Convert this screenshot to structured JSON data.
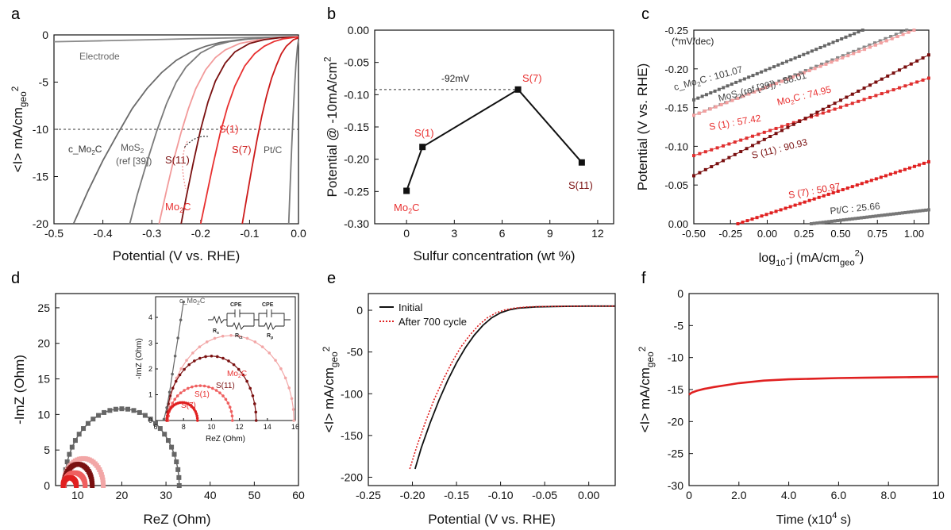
{
  "chart_data": [
    {
      "panel": "a",
      "type": "line",
      "xlabel": "Potential  (V vs. RHE)",
      "ylabel": "<I> mA/cm",
      "ylabel_sub": "geo",
      "ylabel_sup": "2",
      "xlim": [
        -0.5,
        0.0
      ],
      "ylim": [
        -20,
        0
      ],
      "xticks": [
        "-0.5",
        "-0.4",
        "-0.3",
        "-0.2",
        "-0.1",
        "0.0"
      ],
      "yticks": [
        "0",
        "-5",
        "-10",
        "-15",
        "-20"
      ],
      "series": [
        {
          "name": "Electrode",
          "color": "#8a8a8a",
          "x": [
            -0.5,
            -0.4,
            -0.3,
            -0.2,
            -0.1,
            -0.03,
            0.0
          ],
          "y": [
            -0.72,
            -0.62,
            -0.5,
            -0.38,
            -0.28,
            -0.22,
            -0.2
          ]
        },
        {
          "name": "c_Mo2C",
          "color": "#6a6a6a",
          "x": [
            -0.46,
            -0.43,
            -0.4,
            -0.37,
            -0.34,
            -0.31,
            -0.28,
            -0.25,
            -0.22,
            -0.19,
            -0.16,
            -0.12,
            -0.08,
            -0.04,
            0.0
          ],
          "y": [
            -20,
            -16.5,
            -13.3,
            -10.5,
            -7.8,
            -5.7,
            -4.0,
            -2.7,
            -1.8,
            -1.2,
            -0.8,
            -0.5,
            -0.35,
            -0.25,
            -0.2
          ]
        },
        {
          "name": "MoS2 (ref [39])",
          "color": "#7a7a7a",
          "x": [
            -0.345,
            -0.33,
            -0.31,
            -0.29,
            -0.27,
            -0.25,
            -0.23,
            -0.2,
            -0.17,
            -0.14,
            -0.1,
            -0.05,
            0.0
          ],
          "y": [
            -20,
            -17.0,
            -13.5,
            -10.2,
            -7.3,
            -5.0,
            -3.4,
            -1.9,
            -1.1,
            -0.7,
            -0.4,
            -0.25,
            -0.2
          ]
        },
        {
          "name": "Mo2C",
          "color": "#f29a9a",
          "x": [
            -0.285,
            -0.27,
            -0.255,
            -0.24,
            -0.225,
            -0.21,
            -0.19,
            -0.17,
            -0.15,
            -0.12,
            -0.08,
            -0.04,
            0.0
          ],
          "y": [
            -20,
            -16.5,
            -13.2,
            -10.3,
            -7.8,
            -5.7,
            -3.7,
            -2.4,
            -1.6,
            -0.9,
            -0.5,
            -0.3,
            -0.2
          ]
        },
        {
          "name": "S(11)",
          "color": "#7a1010",
          "x": [
            -0.24,
            -0.23,
            -0.215,
            -0.2,
            -0.185,
            -0.17,
            -0.15,
            -0.13,
            -0.1,
            -0.07,
            -0.04,
            0.0
          ],
          "y": [
            -20,
            -17.3,
            -13.5,
            -10.0,
            -7.1,
            -4.9,
            -3.0,
            -1.8,
            -0.9,
            -0.5,
            -0.3,
            -0.2
          ]
        },
        {
          "name": "S(1)",
          "color": "#e83030",
          "x": [
            -0.2,
            -0.19,
            -0.175,
            -0.16,
            -0.145,
            -0.13,
            -0.11,
            -0.09,
            -0.07,
            -0.05,
            -0.03,
            0.0
          ],
          "y": [
            -20,
            -17.5,
            -13.8,
            -10.4,
            -7.6,
            -5.4,
            -3.3,
            -2.0,
            -1.2,
            -0.7,
            -0.4,
            -0.2
          ]
        },
        {
          "name": "S(7)",
          "color": "#cc1a1a",
          "x": [
            -0.115,
            -0.105,
            -0.095,
            -0.085,
            -0.075,
            -0.065,
            -0.055,
            -0.045,
            -0.035,
            -0.025,
            -0.01,
            0.0
          ],
          "y": [
            -20,
            -17.0,
            -14.0,
            -11.2,
            -8.6,
            -6.4,
            -4.6,
            -3.2,
            -2.0,
            -1.2,
            -0.5,
            -0.3
          ]
        },
        {
          "name": "Pt/C",
          "color": "#7a7a7a",
          "x": [
            -0.02,
            -0.017,
            -0.014,
            -0.011,
            -0.008,
            -0.005,
            -0.002,
            0.0
          ],
          "y": [
            -20,
            -16.0,
            -12.0,
            -8.5,
            -5.5,
            -3.0,
            -1.2,
            -0.5
          ]
        }
      ],
      "reference_line_y": -10,
      "labels": {
        "electrode": "Electrode",
        "cmo2c": "c_Mo",
        "cmo2c_sub": "2",
        "cmo2c_tail": "C",
        "mos2": "MoS",
        "mos2_sub": "2",
        "mos2_ref": "(ref [39])",
        "mo2c": "Mo",
        "mo2c_sub": "2",
        "mo2c_tail": "C",
        "s11": "S(11)",
        "s1": "S(1)",
        "s7": "S(7)",
        "ptc": "Pt/C"
      }
    },
    {
      "panel": "b",
      "type": "line",
      "xlabel": "Sulfur concentration (wt %)",
      "ylabel": "Potential @ -10mA/cm",
      "ylabel_sup": "2",
      "xlim": [
        -2,
        13
      ],
      "ylim": [
        -0.3,
        0.0
      ],
      "xticks": [
        "0",
        "3",
        "6",
        "9",
        "12"
      ],
      "yticks": [
        "0.00",
        "-0.05",
        "-0.10",
        "-0.15",
        "-0.20",
        "-0.25",
        "-0.30"
      ],
      "points": [
        {
          "x": 0,
          "y": -0.249
        },
        {
          "x": 1,
          "y": -0.181
        },
        {
          "x": 7,
          "y": -0.092
        },
        {
          "x": 11,
          "y": -0.205
        }
      ],
      "point_labels": {
        "p0": "Mo",
        "p0_sub": "2",
        "p0_tail": "C",
        "p1": "S(1)",
        "p2": "S(7)",
        "p3": "S(11)"
      },
      "annotation": "-92mV"
    },
    {
      "panel": "c",
      "type": "scatter",
      "xlabel": "log",
      "xlabel_sub": "10",
      "xlabel_tail": "-j (mA/cm",
      "xlabel_sub2": "geo",
      "xlabel_sup": "2",
      "xlabel_close": ")",
      "ylabel": "Potential  (V vs. RHE)",
      "xlim": [
        -0.5,
        1.1
      ],
      "ylim": [
        0.0,
        -0.25
      ],
      "xticks": [
        "-0.50",
        "-0.25",
        "0.00",
        "0.25",
        "0.50",
        "0.75",
        "1.00"
      ],
      "yticks": [
        "-0.25",
        "-0.20",
        "-0.15",
        "-0.10",
        "-0.05",
        "0.00"
      ],
      "unit_note": "(*mV/dec)",
      "series": [
        {
          "name": "c_Mo2C",
          "tafel": "101.07",
          "color": "#666666",
          "x": [
            -0.5,
            0.65
          ],
          "y": [
            -0.16,
            -0.25
          ]
        },
        {
          "name": "MoS2 (ref [39])",
          "tafel": "88.01",
          "color": "#888888",
          "x": [
            -0.5,
            0.95
          ],
          "y": [
            -0.14,
            -0.25
          ]
        },
        {
          "name": "Mo2C",
          "tafel": "74.95",
          "color": "#f2a0a0",
          "x": [
            -0.5,
            1.0
          ],
          "y": [
            -0.14,
            -0.25
          ]
        },
        {
          "name": "S (1)",
          "tafel": "57.42",
          "color": "#e03030",
          "x": [
            -0.5,
            1.1
          ],
          "y": [
            -0.088,
            -0.188
          ]
        },
        {
          "name": "S (11)",
          "tafel": "90.93",
          "color": "#7a1010",
          "x": [
            -0.5,
            1.1
          ],
          "y": [
            -0.062,
            -0.218
          ]
        },
        {
          "name": "S (7)",
          "tafel": "50.97",
          "color": "#e02020",
          "x": [
            -0.2,
            1.1
          ],
          "y": [
            0.0,
            -0.08
          ]
        },
        {
          "name": "Pt/C",
          "tafel": "25.66",
          "color": "#777777",
          "x": [
            0.3,
            1.1
          ],
          "y": [
            0.0,
            -0.018
          ]
        }
      ],
      "labels": {
        "cmo2c": "c_Mo",
        "cmo2c_sub": "2",
        "cmo2c_tail": "C : 101.07",
        "mos2": "MoS",
        "mos2_sub": "2",
        "mos2_tail": "(ref [39]) : 88.01",
        "mo2c": "Mo",
        "mo2c_sub": "2",
        "mo2c_tail": "C : 74.95",
        "s1": "S (1) : 57.42",
        "s11": "S (11) : 90.93",
        "s7": "S (7) : 50.97",
        "ptc": "Pt/C : 25.66"
      }
    },
    {
      "panel": "d",
      "type": "scatter",
      "xlabel": "ReZ (Ohm)",
      "ylabel": "-ImZ (Ohm)",
      "xlim": [
        5,
        60
      ],
      "ylim": [
        0,
        27
      ],
      "xticks": [
        "10",
        "20",
        "30",
        "40",
        "50",
        "60"
      ],
      "yticks": [
        "0",
        "5",
        "10",
        "15",
        "20",
        "25"
      ],
      "series": [
        {
          "name": "c_Mo2C",
          "color": "#666666",
          "center": 20,
          "radius": 13,
          "height": 10.8
        },
        {
          "name": "Mo2C",
          "color": "#f2a6a6",
          "center": 11.3,
          "radius": 4.5,
          "height": 3.8
        },
        {
          "name": "S(11)",
          "color": "#7a1010",
          "center": 10.1,
          "radius": 3.2,
          "height": 3.0
        },
        {
          "name": "S(1)",
          "color": "#ef6060",
          "center": 9.3,
          "radius": 2.4,
          "height": 1.8
        },
        {
          "name": "S(7)",
          "color": "#e02020",
          "center": 8.2,
          "radius": 1.5,
          "height": 1.1
        }
      ],
      "inset": {
        "xlabel": "ReZ (Ohm)",
        "ylabel": "-ImZ (Ohm)",
        "xlim": [
          6,
          16
        ],
        "ylim": [
          0,
          4.8
        ],
        "xticks": [
          "6",
          "8",
          "10",
          "12",
          "14",
          "16"
        ],
        "yticks": [
          "0",
          "1",
          "2",
          "3",
          "4"
        ],
        "labels": {
          "cmo2c": "c_Mo",
          "cmo2c_sub": "2",
          "cmo2c_tail": "C",
          "mo2c": "Mo",
          "mo2c_sub": "2",
          "mo2c_tail": "C",
          "s11": "S(11)",
          "s1": "S(1)",
          "s7": "S(7)"
        },
        "circuit": {
          "cpe": "CPE",
          "rs": "R",
          "rs_sub": "s",
          "rct": "R",
          "rct_sub": "ct",
          "rp": "R",
          "rp_sub": "p"
        }
      }
    },
    {
      "panel": "e",
      "type": "line",
      "xlabel": "Potential  (V vs. RHE)",
      "ylabel": "<I> mA/cm",
      "ylabel_sub": "geo",
      "ylabel_sup": "2",
      "xlim": [
        -0.25,
        0.03
      ],
      "ylim": [
        -210,
        20
      ],
      "xticks": [
        "-0.25",
        "-0.20",
        "-0.15",
        "-0.10",
        "-0.05",
        "0.00"
      ],
      "yticks": [
        "0",
        "-50",
        "-100",
        "-150",
        "-200"
      ],
      "series": [
        {
          "name": "Initial",
          "color": "#111111",
          "style": "solid",
          "x": [
            -0.197,
            -0.19,
            -0.18,
            -0.17,
            -0.16,
            -0.15,
            -0.14,
            -0.13,
            -0.12,
            -0.11,
            -0.1,
            -0.09,
            -0.08,
            -0.06,
            -0.04,
            -0.02,
            0.0,
            0.03
          ],
          "y": [
            -190,
            -165,
            -135,
            -108,
            -84,
            -63,
            -45,
            -30,
            -18,
            -9,
            -3,
            0.5,
            2.5,
            4,
            4.5,
            4.8,
            5,
            5
          ]
        },
        {
          "name": "After 700 cycle",
          "color": "#e02020",
          "style": "dotted",
          "x": [
            -0.203,
            -0.195,
            -0.185,
            -0.175,
            -0.165,
            -0.155,
            -0.145,
            -0.135,
            -0.125,
            -0.115,
            -0.105,
            -0.095,
            -0.085,
            -0.07,
            -0.05,
            -0.02,
            0.0,
            0.03
          ],
          "y": [
            -190,
            -163,
            -133,
            -106,
            -83,
            -62,
            -44,
            -30,
            -18,
            -9,
            -3,
            0.5,
            2.5,
            4,
            4.5,
            4.8,
            5,
            5
          ]
        }
      ]
    },
    {
      "panel": "f",
      "type": "line",
      "xlabel": "Time (x10",
      "xlabel_sup": "4",
      "xlabel_tail": " s)",
      "ylabel": "<I> mA/cm",
      "ylabel_sub": "geo",
      "ylabel_sup": "2",
      "xlim": [
        0,
        10
      ],
      "ylim": [
        -30,
        0
      ],
      "xticks": [
        "0",
        "2.0",
        "4.0",
        "6.0",
        "8.0",
        "10"
      ],
      "yticks": [
        "0",
        "-5",
        "-10",
        "-15",
        "-20",
        "-25",
        "-30"
      ],
      "series": [
        {
          "name": "",
          "color": "#e02020",
          "x": [
            0,
            0.1,
            0.3,
            0.6,
            1.0,
            1.5,
            2.0,
            2.5,
            3.0,
            4.0,
            5.0,
            6.0,
            7.0,
            8.0,
            9.0,
            10.0
          ],
          "y": [
            -15.8,
            -15.5,
            -15.2,
            -14.9,
            -14.6,
            -14.3,
            -14.0,
            -13.8,
            -13.6,
            -13.4,
            -13.3,
            -13.2,
            -13.15,
            -13.1,
            -13.05,
            -13.0
          ]
        }
      ]
    }
  ],
  "panel_letters": [
    "a",
    "b",
    "c",
    "d",
    "e",
    "f"
  ]
}
